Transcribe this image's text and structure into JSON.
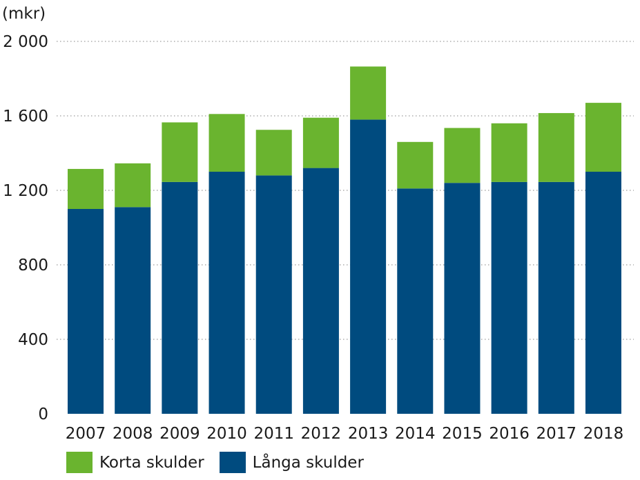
{
  "chart_data": {
    "type": "bar",
    "stacked": true,
    "unit_label": "(mkr)",
    "title": "",
    "xlabel": "",
    "ylabel": "",
    "ylim": [
      0,
      2000
    ],
    "yticks": [
      0,
      400,
      800,
      1200,
      1600,
      2000
    ],
    "ytick_labels": [
      "0",
      "400",
      "800",
      "1 200",
      "1 600",
      "2 000"
    ],
    "grid": "horizontal dotted",
    "legend_position": "bottom-left",
    "categories": [
      "2007",
      "2008",
      "2009",
      "2010",
      "2011",
      "2012",
      "2013",
      "2014",
      "2015",
      "2016",
      "2017",
      "2018"
    ],
    "series": [
      {
        "name": "Långa skulder",
        "color": "#004b7f",
        "values": [
          1100,
          1110,
          1245,
          1300,
          1280,
          1320,
          1580,
          1210,
          1240,
          1245,
          1245,
          1300
        ]
      },
      {
        "name": "Korta skulder",
        "color": "#6ab42f",
        "values": [
          215,
          235,
          320,
          310,
          245,
          270,
          285,
          250,
          295,
          315,
          370,
          370
        ]
      }
    ],
    "legend_order": [
      "Korta skulder",
      "Långa skulder"
    ]
  }
}
